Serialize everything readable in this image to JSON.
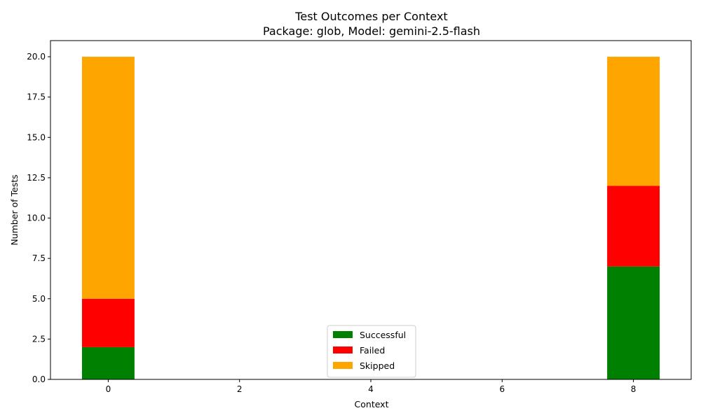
{
  "chart_data": {
    "type": "bar",
    "stacked": true,
    "title": "Test Outcomes per Context",
    "subtitle": "Package: glob, Model: gemini-2.5-flash",
    "xlabel": "Context",
    "ylabel": "Number of Tests",
    "x": [
      0,
      8
    ],
    "bar_width": 0.8,
    "xlim": [
      -0.88,
      8.88
    ],
    "ylim": [
      0,
      21
    ],
    "xticks": [
      0,
      2,
      4,
      6,
      8
    ],
    "yticks": [
      0.0,
      2.5,
      5.0,
      7.5,
      10.0,
      12.5,
      15.0,
      17.5,
      20.0
    ],
    "series": [
      {
        "name": "Successful",
        "color": "#008000",
        "values": [
          2,
          7
        ]
      },
      {
        "name": "Failed",
        "color": "#ff0000",
        "values": [
          3,
          5
        ]
      },
      {
        "name": "Skipped",
        "color": "#ffa500",
        "values": [
          15,
          8
        ]
      }
    ],
    "legend": "lower center",
    "grid": false
  }
}
